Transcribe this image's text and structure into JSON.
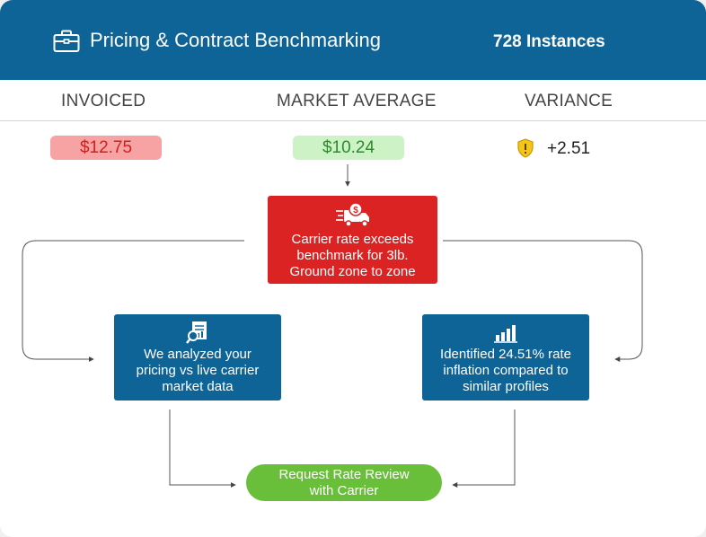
{
  "header": {
    "title": "Pricing & Contract Benchmarking",
    "instances": "728 Instances",
    "icon": "briefcase-icon"
  },
  "columns": {
    "invoiced": "INVOICED",
    "market_average": "MARKET AVERAGE",
    "variance": "VARIANCE"
  },
  "values": {
    "invoiced": "$12.75",
    "market_average": "$10.24",
    "variance": "+2.51",
    "variance_icon": "warning-shield-icon"
  },
  "alert": {
    "icon": "delivery-truck-dollar-icon",
    "text": "Carrier rate exceeds benchmark for 3lb. Ground zone to zone"
  },
  "analysis": {
    "icon": "report-analysis-icon",
    "text": "We analyzed your pricing vs live carrier market data"
  },
  "finding": {
    "icon": "bar-chart-icon",
    "text": "Identified 24.51% rate inflation compared to similar profiles"
  },
  "action": {
    "label": "Request Rate Review with Carrier"
  },
  "colors": {
    "header": "#0e6496",
    "alert": "#dc2323",
    "action": "#6abf3a",
    "invoiced_bg": "#f7a3a3",
    "market_bg": "#ccf2c6"
  }
}
